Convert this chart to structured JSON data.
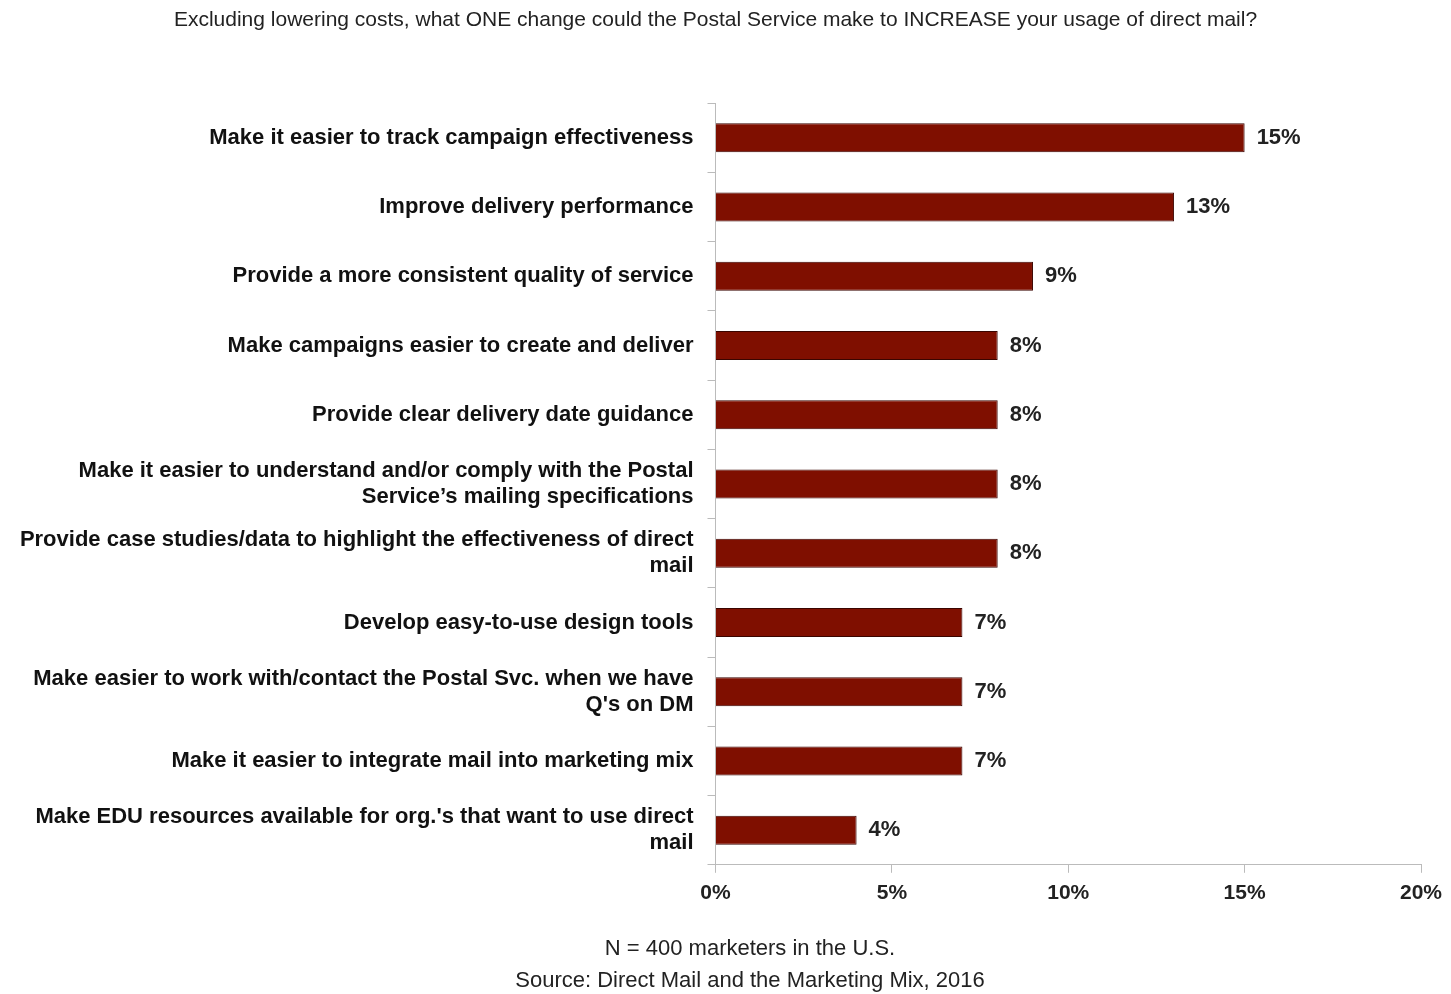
{
  "chart_data": {
    "type": "bar",
    "orientation": "horizontal",
    "title": "Excluding lowering costs, what ONE change could the Postal Service make to INCREASE your usage of direct mail?",
    "categories": [
      "Make it easier to track campaign effectiveness",
      "Improve delivery performance",
      "Provide a more consistent quality of service",
      "Make campaigns easier to create and deliver",
      "Provide clear delivery date guidance",
      "Make it easier to understand and/or comply with the Postal Service’s mailing specifications",
      "Provide case studies/data to highlight the effectiveness of direct mail",
      "Develop easy-to-use design tools",
      "Make easier to work with/contact the Postal Svc. when we have Q's on DM",
      "Make it easier to integrate mail into marketing mix",
      "Make EDU resources available for org.'s that want to use direct mail"
    ],
    "values": [
      15,
      13,
      9,
      8,
      8,
      8,
      8,
      7,
      7,
      7,
      4
    ],
    "value_labels": [
      "15%",
      "13%",
      "9%",
      "8%",
      "8%",
      "8%",
      "8%",
      "7%",
      "7%",
      "7%",
      "4%"
    ],
    "color": "#7f0f00",
    "xlim": [
      0,
      20
    ],
    "xticks": [
      {
        "value": 0,
        "label": "0%"
      },
      {
        "value": 5,
        "label": "5%"
      },
      {
        "value": 10,
        "label": "10%"
      },
      {
        "value": 15,
        "label": "15%"
      },
      {
        "value": 20,
        "label": "20%"
      }
    ],
    "grid": false,
    "legend": false,
    "annotations": [
      "N = 400 marketers in the U.S.",
      "Source: Direct Mail and the Marketing Mix, 2016"
    ]
  }
}
